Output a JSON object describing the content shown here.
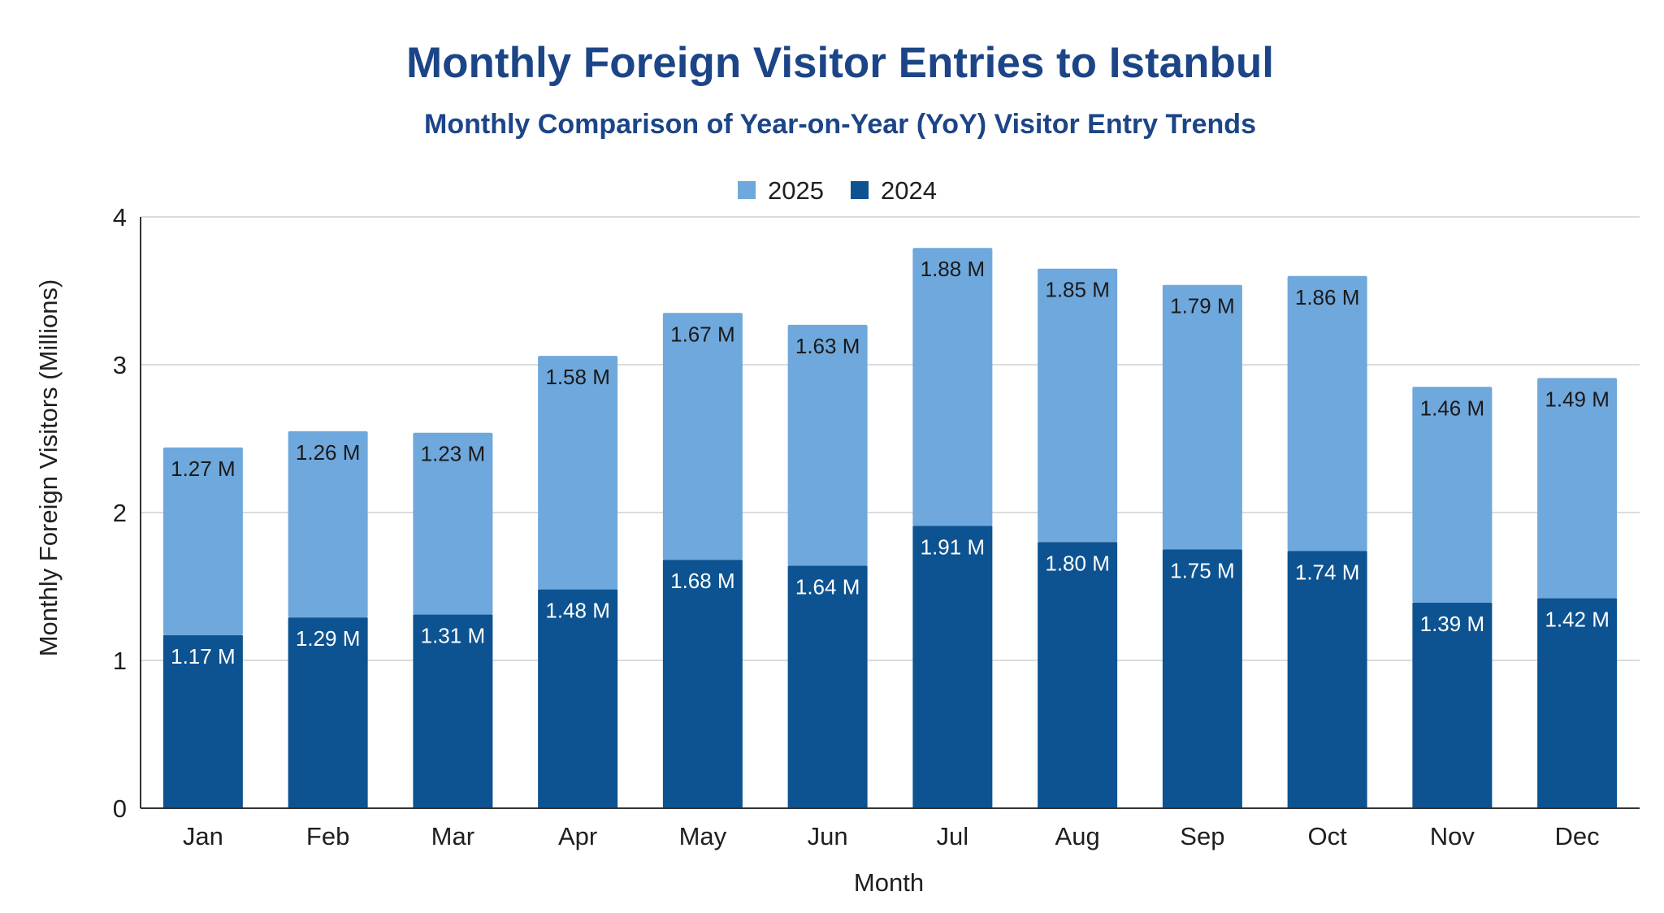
{
  "chart_data": {
    "type": "bar",
    "stacked": true,
    "title": "Monthly Foreign Visitor Entries to Istanbul",
    "subtitle": "Monthly Comparison of Year-on-Year (YoY) Visitor Entry Trends",
    "xlabel": "Month",
    "ylabel": "Monthly Foreign Visitors (Millions)",
    "ylim": [
      0,
      4
    ],
    "yticks": [
      0,
      1,
      2,
      3,
      4
    ],
    "grid": true,
    "legend_position": "top-center",
    "categories": [
      "Jan",
      "Feb",
      "Mar",
      "Apr",
      "May",
      "Jun",
      "Jul",
      "Aug",
      "Sep",
      "Oct",
      "Nov",
      "Dec"
    ],
    "series": [
      {
        "name": "2024",
        "color": "#0d5391",
        "label_color": "#ffffff",
        "values": [
          1.17,
          1.29,
          1.31,
          1.48,
          1.68,
          1.64,
          1.91,
          1.8,
          1.75,
          1.74,
          1.39,
          1.42
        ],
        "labels": [
          "1.17 M",
          "1.29 M",
          "1.31 M",
          "1.48 M",
          "1.68 M",
          "1.64 M",
          "1.91 M",
          "1.80 M",
          "1.75 M",
          "1.74 M",
          "1.39 M",
          "1.42 M"
        ]
      },
      {
        "name": "2025",
        "color": "#6fa8dc",
        "label_color": "#1a1a1a",
        "values": [
          1.27,
          1.26,
          1.23,
          1.58,
          1.67,
          1.63,
          1.88,
          1.85,
          1.79,
          1.86,
          1.46,
          1.49
        ],
        "labels": [
          "1.27 M",
          "1.26 M",
          "1.23 M",
          "1.58 M",
          "1.67 M",
          "1.63 M",
          "1.88 M",
          "1.85 M",
          "1.79 M",
          "1.86 M",
          "1.46 M",
          "1.49 M"
        ]
      }
    ],
    "legend_order": [
      "2025",
      "2024"
    ],
    "colors": {
      "title": "#1c4587",
      "subtitle": "#1c4587",
      "grid": "#d0d0d0",
      "axis": "#333333"
    }
  }
}
